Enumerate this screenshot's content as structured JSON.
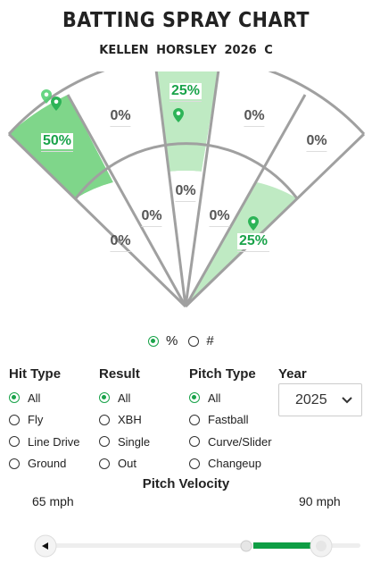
{
  "header": {
    "title": "BATTING SPRAY CHART",
    "subtitle": "KELLEN HORSLEY   2026   C"
  },
  "chart_data": {
    "type": "spray",
    "outer_zones": [
      {
        "label": "50%",
        "highlight": "strong"
      },
      {
        "label": "0%",
        "highlight": "none"
      },
      {
        "label": "25%",
        "highlight": "light"
      },
      {
        "label": "0%",
        "highlight": "none"
      },
      {
        "label": "0%",
        "highlight": "none"
      }
    ],
    "inner_zones": [
      {
        "label": "0%",
        "highlight": "none"
      },
      {
        "label": "0%",
        "highlight": "none"
      },
      {
        "label": "0%",
        "highlight": "none"
      },
      {
        "label": "0%",
        "highlight": "none"
      },
      {
        "label": "25%",
        "highlight": "light"
      }
    ],
    "hit_markers": 4
  },
  "display_toggle": {
    "options": [
      {
        "label": "%",
        "selected": true
      },
      {
        "label": "#",
        "selected": false
      }
    ]
  },
  "filters": {
    "hit_type": {
      "label": "Hit Type",
      "options": [
        "All",
        "Fly",
        "Line Drive",
        "Ground"
      ],
      "selected": 0
    },
    "result": {
      "label": "Result",
      "options": [
        "All",
        "XBH",
        "Single",
        "Out"
      ],
      "selected": 0
    },
    "pitch_type": {
      "label": "Pitch Type",
      "options": [
        "All",
        "Fastball",
        "Curve/Slider",
        "Changeup"
      ],
      "selected": 0
    },
    "year": {
      "label": "Year",
      "value": "2025"
    }
  },
  "velocity": {
    "label": "Pitch Velocity",
    "min_label": "65 mph",
    "max_label": "90 mph"
  },
  "colors": {
    "accent": "#1aa34a",
    "strong_fill": "#7fd68a",
    "light_fill": "#bfeac3",
    "line": "#a0a0a0"
  }
}
